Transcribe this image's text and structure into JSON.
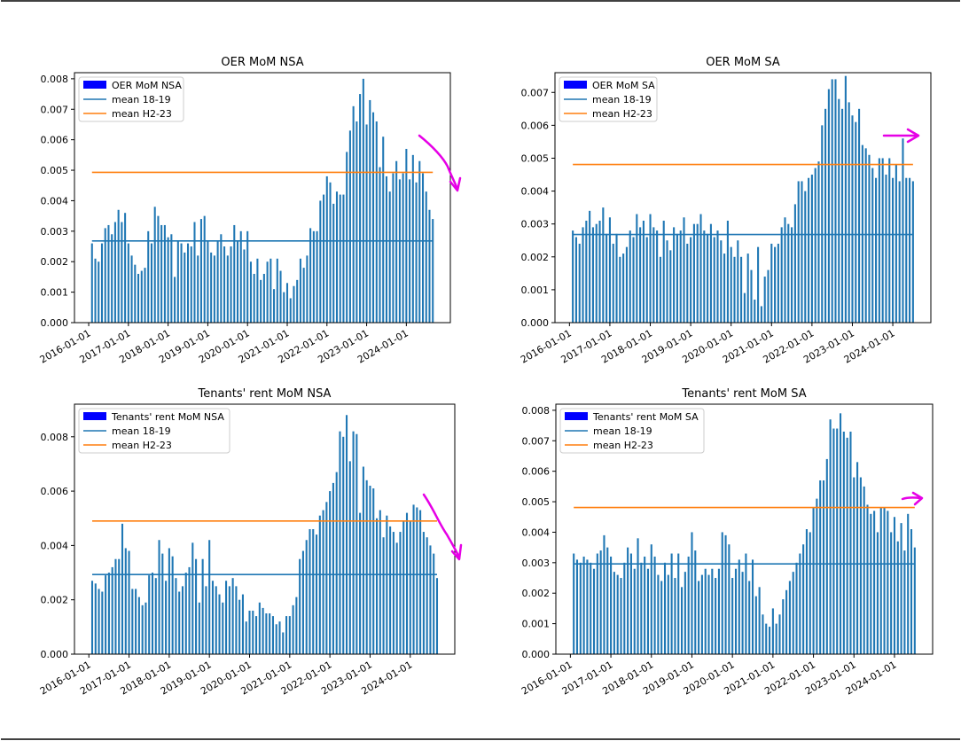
{
  "colors": {
    "bar": "#1f77b4",
    "legend_patch": "#0000ff",
    "mean_18_19": "#1f77b4",
    "mean_h2_23": "#ff7f0e",
    "annotation": "#e600e6",
    "frame": "#000000"
  },
  "x_tick_labels": [
    "2016-01-01",
    "2017-01-01",
    "2018-01-01",
    "2019-01-01",
    "2020-01-01",
    "2021-01-01",
    "2022-01-01",
    "2023-01-01",
    "2024-01-01"
  ],
  "chart_data": [
    {
      "type": "bar",
      "title": "OER MoM NSA",
      "x_start": "2016-02",
      "x_end": "2024-05",
      "ylim": [
        0,
        0.0082
      ],
      "yticks": [
        "0.000",
        "0.001",
        "0.002",
        "0.003",
        "0.004",
        "0.005",
        "0.006",
        "0.007",
        "0.008"
      ],
      "ytick_values": [
        0,
        0.001,
        0.002,
        0.003,
        0.004,
        0.005,
        0.006,
        0.007,
        0.008
      ],
      "legend": [
        "OER MoM NSA",
        "mean 18-19",
        "mean H2-23"
      ],
      "legend_loc": "upper left",
      "hlines": [
        {
          "name": "mean 18-19",
          "value": 0.00268
        },
        {
          "name": "mean H2-23",
          "value": 0.00493
        }
      ],
      "values": [
        0.0026,
        0.0021,
        0.002,
        0.0026,
        0.0031,
        0.0032,
        0.0029,
        0.0033,
        0.0037,
        0.0033,
        0.0036,
        0.0026,
        0.0022,
        0.0019,
        0.0016,
        0.0017,
        0.0018,
        0.003,
        0.0026,
        0.0038,
        0.0035,
        0.0032,
        0.0032,
        0.0028,
        0.0029,
        0.0015,
        0.0027,
        0.0026,
        0.0023,
        0.0026,
        0.0025,
        0.0033,
        0.0022,
        0.0034,
        0.0035,
        0.0027,
        0.0023,
        0.0022,
        0.0027,
        0.0029,
        0.0025,
        0.0022,
        0.0025,
        0.0032,
        0.0027,
        0.003,
        0.0024,
        0.003,
        0.002,
        0.0016,
        0.0021,
        0.0014,
        0.0016,
        0.002,
        0.0021,
        0.0011,
        0.0021,
        0.0017,
        0.001,
        0.0013,
        0.0008,
        0.0012,
        0.0014,
        0.0021,
        0.0018,
        0.0022,
        0.0031,
        0.003,
        0.003,
        0.004,
        0.0042,
        0.0048,
        0.0046,
        0.0039,
        0.0043,
        0.0042,
        0.0042,
        0.0056,
        0.0063,
        0.0071,
        0.0066,
        0.0075,
        0.008,
        0.0065,
        0.0073,
        0.0069,
        0.0066,
        0.0051,
        0.0061,
        0.0048,
        0.0043,
        0.0049,
        0.0053,
        0.0047,
        0.0049,
        0.0057,
        0.0047,
        0.0055,
        0.0046,
        0.0053,
        0.0049,
        0.0043,
        0.0037,
        0.0034
      ]
    },
    {
      "type": "bar",
      "title": "OER MoM SA",
      "x_start": "2016-02",
      "x_end": "2024-05",
      "ylim": [
        0,
        0.0076
      ],
      "yticks": [
        "0.000",
        "0.001",
        "0.002",
        "0.003",
        "0.004",
        "0.005",
        "0.006",
        "0.007"
      ],
      "ytick_values": [
        0,
        0.001,
        0.002,
        0.003,
        0.004,
        0.005,
        0.006,
        0.007
      ],
      "legend": [
        "OER MoM SA",
        "mean 18-19",
        "mean H2-23"
      ],
      "legend_loc": "upper left",
      "hlines": [
        {
          "name": "mean 18-19",
          "value": 0.00268
        },
        {
          "name": "mean H2-23",
          "value": 0.00481
        }
      ],
      "values": [
        0.0028,
        0.0026,
        0.0024,
        0.0029,
        0.0031,
        0.0034,
        0.0029,
        0.003,
        0.0031,
        0.0035,
        0.0027,
        0.0032,
        0.0024,
        0.0027,
        0.002,
        0.0021,
        0.0023,
        0.0028,
        0.0026,
        0.0033,
        0.0029,
        0.0031,
        0.0026,
        0.0033,
        0.0029,
        0.0028,
        0.002,
        0.0031,
        0.0025,
        0.0022,
        0.0029,
        0.0027,
        0.0028,
        0.0032,
        0.0024,
        0.0026,
        0.003,
        0.003,
        0.0033,
        0.0028,
        0.0027,
        0.003,
        0.0026,
        0.0028,
        0.0025,
        0.0021,
        0.0031,
        0.0023,
        0.002,
        0.0025,
        0.002,
        0.0009,
        0.0021,
        0.0016,
        0.0007,
        0.0023,
        0.0005,
        0.0014,
        0.0016,
        0.0024,
        0.0023,
        0.0024,
        0.0029,
        0.0032,
        0.003,
        0.0029,
        0.0036,
        0.0043,
        0.0043,
        0.004,
        0.0044,
        0.0045,
        0.0047,
        0.0049,
        0.006,
        0.0065,
        0.0071,
        0.0074,
        0.0074,
        0.0068,
        0.0065,
        0.0075,
        0.0067,
        0.0063,
        0.0061,
        0.0065,
        0.0054,
        0.0053,
        0.0051,
        0.0047,
        0.0044,
        0.005,
        0.005,
        0.0045,
        0.005,
        0.0044,
        0.0048,
        0.0043,
        0.0056,
        0.0044,
        0.0044,
        0.0043
      ]
    },
    {
      "type": "bar",
      "title": "Tenants' rent MoM NSA",
      "x_start": "2016-02",
      "x_end": "2024-05",
      "ylim": [
        0,
        0.0092
      ],
      "yticks": [
        "0.000",
        "0.002",
        "0.004",
        "0.006",
        "0.008"
      ],
      "ytick_values": [
        0,
        0.002,
        0.004,
        0.006,
        0.008
      ],
      "legend": [
        "Tenants' rent MoM NSA",
        "mean 18-19",
        "mean H2-23"
      ],
      "legend_loc": "upper left",
      "hlines": [
        {
          "name": "mean 18-19",
          "value": 0.00293
        },
        {
          "name": "mean H2-23",
          "value": 0.0049
        }
      ],
      "values": [
        0.0027,
        0.0026,
        0.0024,
        0.0023,
        0.0029,
        0.003,
        0.0032,
        0.0035,
        0.0035,
        0.0048,
        0.0039,
        0.0038,
        0.0024,
        0.0024,
        0.0021,
        0.0018,
        0.0019,
        0.0029,
        0.003,
        0.0028,
        0.0042,
        0.0037,
        0.0027,
        0.0039,
        0.0036,
        0.0028,
        0.0023,
        0.0025,
        0.003,
        0.0032,
        0.0041,
        0.0035,
        0.0019,
        0.0035,
        0.0025,
        0.0042,
        0.0027,
        0.0025,
        0.0022,
        0.0019,
        0.0027,
        0.0025,
        0.0028,
        0.0025,
        0.002,
        0.0022,
        0.0012,
        0.0016,
        0.0016,
        0.0014,
        0.0019,
        0.0017,
        0.0015,
        0.0015,
        0.0014,
        0.0011,
        0.0012,
        0.0008,
        0.0014,
        0.0014,
        0.0018,
        0.0021,
        0.0035,
        0.0038,
        0.0042,
        0.0046,
        0.0046,
        0.0044,
        0.0051,
        0.0053,
        0.0056,
        0.006,
        0.0063,
        0.0067,
        0.0082,
        0.008,
        0.0088,
        0.0071,
        0.0082,
        0.0081,
        0.0052,
        0.0069,
        0.0064,
        0.0062,
        0.0061,
        0.005,
        0.0053,
        0.0043,
        0.0051,
        0.0047,
        0.0045,
        0.0041,
        0.0045,
        0.0049,
        0.0052,
        0.0049,
        0.0055,
        0.0054,
        0.0053,
        0.0045,
        0.0043,
        0.004,
        0.0037,
        0.0028
      ]
    },
    {
      "type": "bar",
      "title": "Tenants' rent MoM SA",
      "x_start": "2016-02",
      "x_end": "2024-05",
      "ylim": [
        0,
        0.0082
      ],
      "yticks": [
        "0.000",
        "0.001",
        "0.002",
        "0.003",
        "0.004",
        "0.005",
        "0.006",
        "0.007",
        "0.008"
      ],
      "ytick_values": [
        0,
        0.001,
        0.002,
        0.003,
        0.004,
        0.005,
        0.006,
        0.007,
        0.008
      ],
      "legend": [
        "Tenants' rent MoM SA",
        "mean 18-19",
        "mean H2-23"
      ],
      "legend_loc": "upper left",
      "hlines": [
        {
          "name": "mean 18-19",
          "value": 0.00296
        },
        {
          "name": "mean H2-23",
          "value": 0.00481
        }
      ],
      "values": [
        0.0033,
        0.0031,
        0.003,
        0.0032,
        0.0031,
        0.003,
        0.0028,
        0.0033,
        0.0034,
        0.0039,
        0.0035,
        0.0032,
        0.0027,
        0.0026,
        0.0025,
        0.003,
        0.0035,
        0.0033,
        0.0028,
        0.0038,
        0.003,
        0.0032,
        0.0028,
        0.0036,
        0.0032,
        0.0026,
        0.0024,
        0.003,
        0.0026,
        0.0033,
        0.0025,
        0.0033,
        0.0022,
        0.0027,
        0.0032,
        0.004,
        0.0034,
        0.0024,
        0.0026,
        0.0028,
        0.0026,
        0.0028,
        0.0025,
        0.0028,
        0.004,
        0.0039,
        0.0036,
        0.0025,
        0.0028,
        0.0031,
        0.0027,
        0.0033,
        0.0024,
        0.0031,
        0.0019,
        0.0022,
        0.0013,
        0.001,
        0.0009,
        0.0015,
        0.001,
        0.0013,
        0.0018,
        0.0021,
        0.0024,
        0.0027,
        0.003,
        0.0033,
        0.0036,
        0.0041,
        0.004,
        0.0048,
        0.0051,
        0.0057,
        0.0057,
        0.0064,
        0.0077,
        0.0074,
        0.0074,
        0.0079,
        0.0073,
        0.0071,
        0.0073,
        0.0058,
        0.0063,
        0.0058,
        0.0055,
        0.0049,
        0.0046,
        0.0047,
        0.004,
        0.0048,
        0.0048,
        0.0047,
        0.004,
        0.0045,
        0.0037,
        0.0043,
        0.0034,
        0.0046,
        0.0041,
        0.0035
      ]
    }
  ]
}
